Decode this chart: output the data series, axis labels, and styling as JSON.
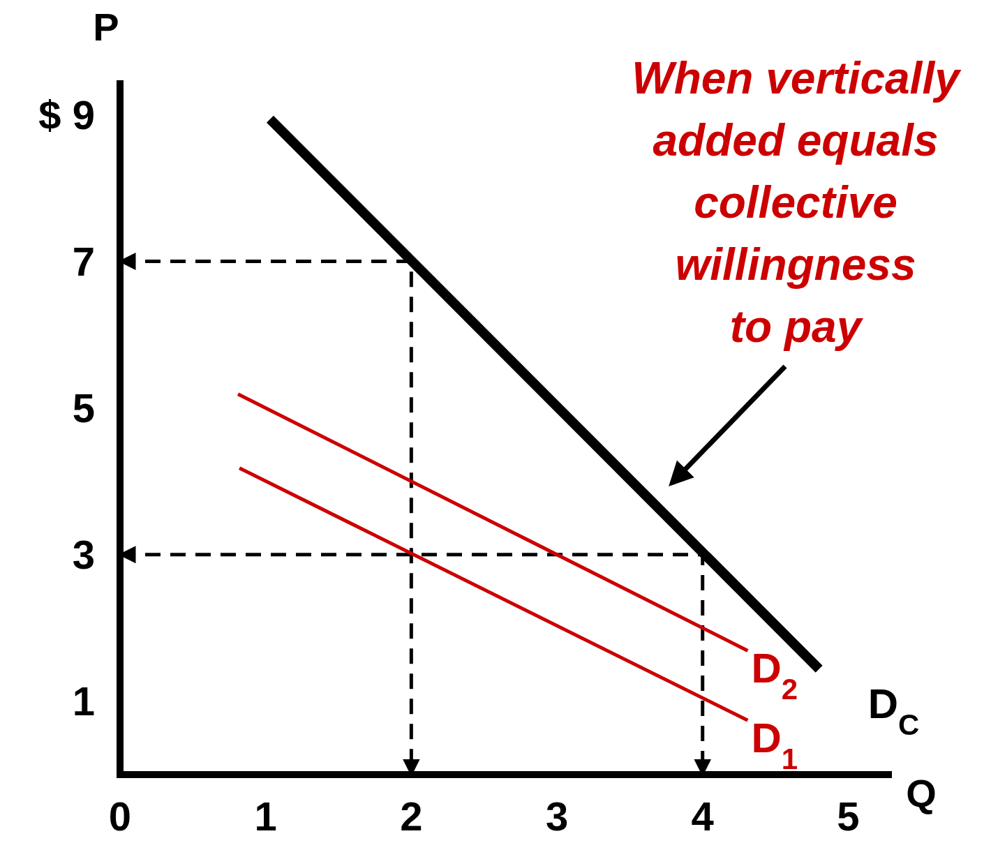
{
  "chart_data": {
    "type": "line",
    "xlabel": "Q",
    "ylabel": "P",
    "xlim": [
      0,
      5.3
    ],
    "ylim": [
      0,
      9.47
    ],
    "xticks": [
      0,
      1,
      2,
      3,
      4,
      5
    ],
    "yticks": [
      1,
      3,
      5,
      7,
      {
        "value": 9,
        "label": "$ 9"
      }
    ],
    "grid": false,
    "legend": false,
    "marker": "none",
    "series": [
      {
        "color": "#000000",
        "line_style": "dashed",
        "x": [
          0,
          2,
          2
        ],
        "values": [
          7,
          7,
          0
        ]
      },
      {
        "color": "#000000",
        "line_style": "dashed",
        "x": [
          0,
          4,
          4
        ],
        "values": [
          3,
          3,
          0
        ]
      },
      {
        "name": "D$_{C}$",
        "color": "#000000",
        "x": [
          1.03,
          4.8
        ],
        "values": [
          8.94,
          1.44
        ]
      },
      {
        "name": "D$_{2}$",
        "color": "#cc0000",
        "x": [
          0.81,
          4.31
        ],
        "values": [
          5.19,
          1.69
        ]
      },
      {
        "name": "D$_{1}$",
        "color": "#cc0000",
        "x": [
          0.82,
          4.31
        ],
        "values": [
          4.18,
          0.74
        ]
      }
    ],
    "annotations": [
      "When vertically\nadded equals\ncollective\nwillingness\nto pay"
    ]
  }
}
